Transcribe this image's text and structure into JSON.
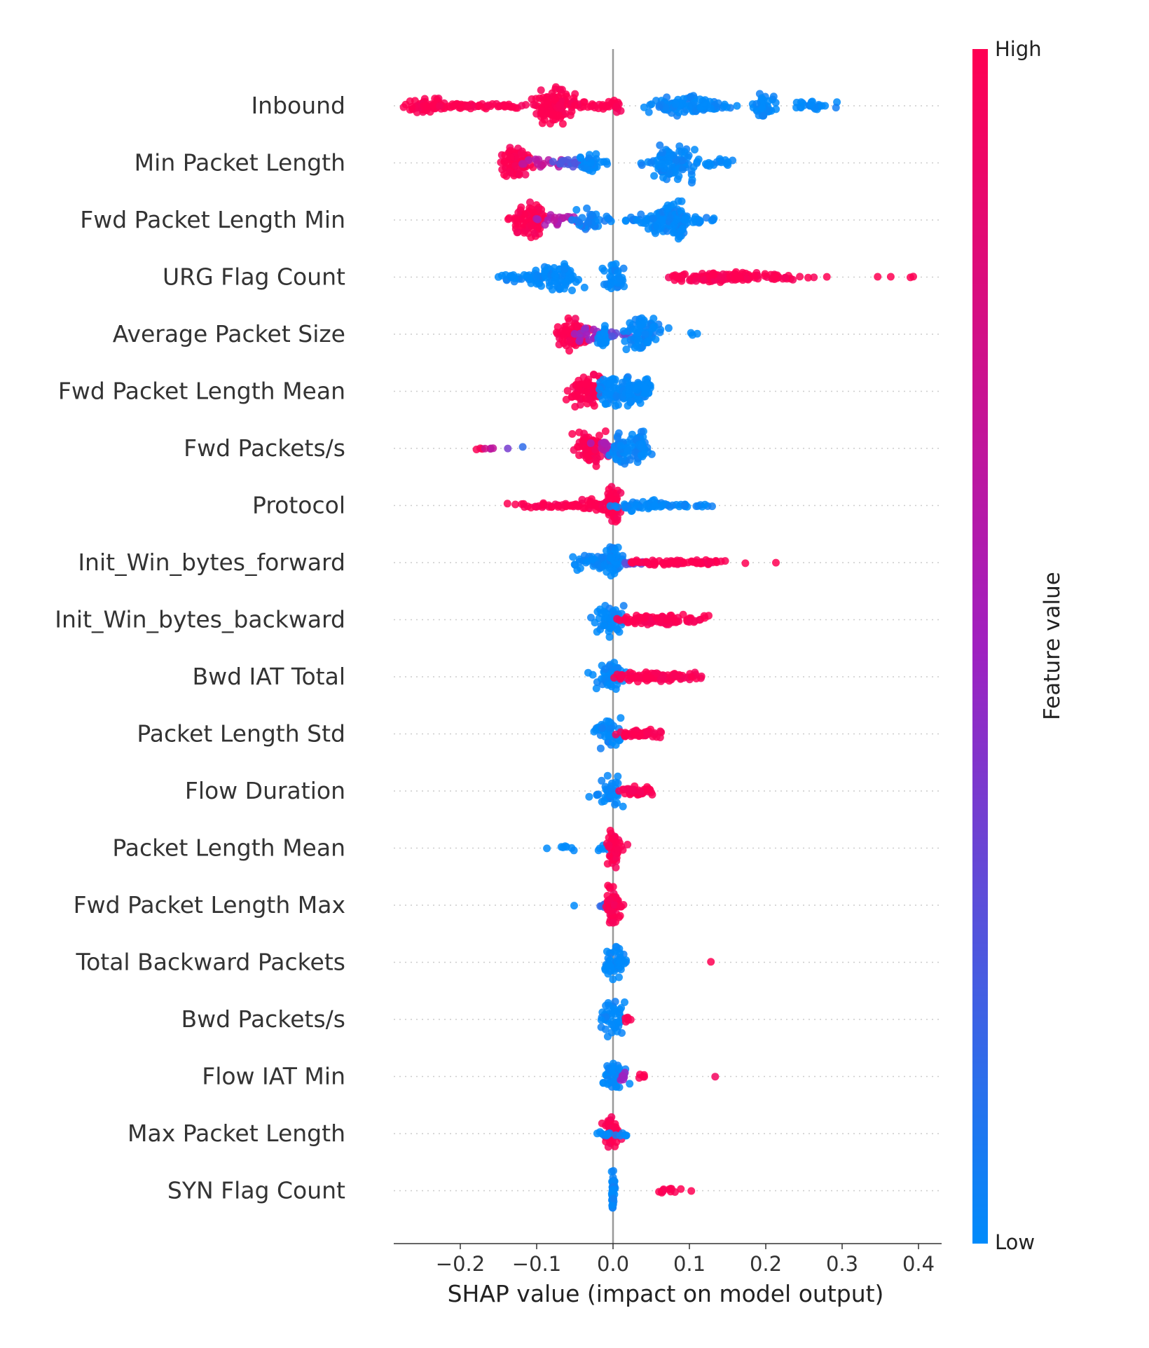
{
  "chart_data": {
    "type": "scatter",
    "subtype": "shap-beeswarm",
    "title": "",
    "xlabel": "SHAP value (impact on model output)",
    "ylabel": "",
    "xlim": [
      -0.29,
      0.43
    ],
    "x_ticks": [
      -0.2,
      -0.1,
      0.0,
      0.1,
      0.2,
      0.3,
      0.4
    ],
    "x_tick_labels": [
      "−0.2",
      "−0.1",
      "0.0",
      "0.1",
      "0.2",
      "0.3",
      "0.4"
    ],
    "colorbar": {
      "label": "Feature value",
      "high_label": "High",
      "low_label": "Low",
      "high_color": "#ff0052",
      "low_color": "#008bfb"
    },
    "features": [
      {
        "name": "Inbound",
        "clusters": [
          {
            "x": -0.245,
            "spread": 0.012,
            "v": 1,
            "w": 0.95,
            "n": 40
          },
          {
            "x": -0.21,
            "spread": 0.03,
            "v": 1,
            "w": 0.3,
            "n": 40
          },
          {
            "x": -0.15,
            "spread": 0.045,
            "v": 1,
            "w": 0.3,
            "n": 45
          },
          {
            "x": -0.075,
            "spread": 0.012,
            "v": 1,
            "w": 2.0,
            "n": 90
          },
          {
            "x": -0.03,
            "spread": 0.02,
            "v": 1,
            "w": 0.4,
            "n": 25
          },
          {
            "x": 0.0,
            "spread": 0.008,
            "v": 1,
            "w": 0.8,
            "n": 15
          },
          {
            "x": 0.095,
            "spread": 0.025,
            "v": 0,
            "w": 1.2,
            "n": 70
          },
          {
            "x": 0.06,
            "spread": 0.015,
            "v": 0,
            "w": 0.5,
            "n": 15
          },
          {
            "x": 0.13,
            "spread": 0.015,
            "v": 0,
            "w": 0.4,
            "n": 15
          },
          {
            "x": 0.195,
            "spread": 0.008,
            "v": 0,
            "w": 1.3,
            "n": 35
          },
          {
            "x": 0.26,
            "spread": 0.015,
            "v": 0,
            "w": 0.55,
            "n": 25
          }
        ]
      },
      {
        "name": "Min Packet Length",
        "clusters": [
          {
            "x": -0.128,
            "spread": 0.01,
            "v": 1,
            "w": 1.9,
            "n": 70
          },
          {
            "x": -0.095,
            "spread": 0.012,
            "v": 0.65,
            "w": 0.6,
            "n": 18
          },
          {
            "x": -0.06,
            "spread": 0.012,
            "v": 0.25,
            "w": 0.45,
            "n": 18
          },
          {
            "x": -0.03,
            "spread": 0.007,
            "v": 0,
            "w": 1.3,
            "n": 30
          },
          {
            "x": 0.01,
            "spread": 0.02,
            "v": 0,
            "w": 0.3,
            "n": 10
          },
          {
            "x": 0.08,
            "spread": 0.013,
            "v": 0,
            "w": 2.1,
            "n": 90
          },
          {
            "x": 0.13,
            "spread": 0.018,
            "v": 0,
            "w": 0.5,
            "n": 20
          }
        ]
      },
      {
        "name": "Fwd Packet Length Min",
        "clusters": [
          {
            "x": -0.112,
            "spread": 0.012,
            "v": 1,
            "w": 2.0,
            "n": 80
          },
          {
            "x": -0.075,
            "spread": 0.012,
            "v": 0.6,
            "w": 0.7,
            "n": 20
          },
          {
            "x": -0.03,
            "spread": 0.01,
            "v": 0.05,
            "w": 1.5,
            "n": 35
          },
          {
            "x": 0.03,
            "spread": 0.02,
            "v": 0,
            "w": 0.4,
            "n": 20
          },
          {
            "x": 0.065,
            "spread": 0.012,
            "v": 0,
            "w": 1.6,
            "n": 60
          },
          {
            "x": 0.085,
            "spread": 0.006,
            "v": 0,
            "w": 2.3,
            "n": 50
          },
          {
            "x": 0.12,
            "spread": 0.012,
            "v": 0,
            "w": 0.5,
            "n": 18
          }
        ]
      },
      {
        "name": "URG Flag Count",
        "clusters": [
          {
            "x": -0.12,
            "spread": 0.015,
            "v": 0,
            "w": 0.5,
            "n": 25
          },
          {
            "x": -0.095,
            "spread": 0.01,
            "v": 0,
            "w": 1.0,
            "n": 30
          },
          {
            "x": -0.07,
            "spread": 0.012,
            "v": 0,
            "w": 1.8,
            "n": 55
          },
          {
            "x": 0.0,
            "spread": 0.008,
            "v": 0,
            "w": 1.8,
            "n": 35
          },
          {
            "x": 0.1,
            "spread": 0.015,
            "v": 1,
            "w": 0.5,
            "n": 30
          },
          {
            "x": 0.14,
            "spread": 0.02,
            "v": 1,
            "w": 0.6,
            "n": 60
          },
          {
            "x": 0.2,
            "spread": 0.02,
            "v": 1,
            "w": 0.45,
            "n": 35
          },
          {
            "x": 0.25,
            "spread": 0.012,
            "v": 1,
            "w": 0.1,
            "n": 4
          },
          {
            "x": 0.28,
            "spread": 0.0,
            "v": 1,
            "w": 0.1,
            "n": 1
          },
          {
            "x": 0.35,
            "spread": 0.006,
            "v": 1,
            "w": 0.1,
            "n": 2
          },
          {
            "x": 0.39,
            "spread": 0.005,
            "v": 1,
            "w": 0.1,
            "n": 2
          }
        ]
      },
      {
        "name": "Average Packet Size",
        "clusters": [
          {
            "x": -0.055,
            "spread": 0.012,
            "v": 1,
            "w": 1.9,
            "n": 70
          },
          {
            "x": -0.025,
            "spread": 0.01,
            "v": 0.5,
            "w": 0.8,
            "n": 20
          },
          {
            "x": -0.013,
            "spread": 0.004,
            "v": 0,
            "w": 1.4,
            "n": 25
          },
          {
            "x": 0.01,
            "spread": 0.008,
            "v": 0.3,
            "w": 0.4,
            "n": 10
          },
          {
            "x": 0.04,
            "spread": 0.012,
            "v": 0,
            "w": 2.0,
            "n": 75
          },
          {
            "x": 0.102,
            "spread": 0.006,
            "v": 0,
            "w": 0.3,
            "n": 3
          }
        ]
      },
      {
        "name": "Fwd Packet Length Mean",
        "clusters": [
          {
            "x": -0.035,
            "spread": 0.01,
            "v": 1,
            "w": 1.9,
            "n": 70
          },
          {
            "x": -0.005,
            "spread": 0.007,
            "v": 0,
            "w": 1.7,
            "n": 45
          },
          {
            "x": 0.02,
            "spread": 0.008,
            "v": 0,
            "w": 1.7,
            "n": 45
          },
          {
            "x": 0.038,
            "spread": 0.006,
            "v": 0,
            "w": 1.5,
            "n": 35
          }
        ]
      },
      {
        "name": "Fwd Packets/s",
        "clusters": [
          {
            "x": -0.178,
            "spread": 0.005,
            "v": 1,
            "w": 0.2,
            "n": 3
          },
          {
            "x": -0.16,
            "spread": 0.005,
            "v": 0.7,
            "w": 0.2,
            "n": 4
          },
          {
            "x": -0.14,
            "spread": 0.002,
            "v": 0.4,
            "w": 0.2,
            "n": 1
          },
          {
            "x": -0.123,
            "spread": 0.002,
            "v": 0.2,
            "w": 0.2,
            "n": 1
          },
          {
            "x": -0.03,
            "spread": 0.01,
            "v": 1,
            "w": 2.0,
            "n": 70
          },
          {
            "x": -0.01,
            "spread": 0.01,
            "v": 0.6,
            "w": 0.9,
            "n": 20
          },
          {
            "x": 0.01,
            "spread": 0.007,
            "v": 0,
            "w": 1.7,
            "n": 40
          },
          {
            "x": 0.033,
            "spread": 0.007,
            "v": 0,
            "w": 2.0,
            "n": 45
          }
        ]
      },
      {
        "name": "Protocol",
        "clusters": [
          {
            "x": -0.07,
            "spread": 0.03,
            "v": 1,
            "w": 0.3,
            "n": 45
          },
          {
            "x": -0.02,
            "spread": 0.012,
            "v": 1,
            "w": 0.9,
            "n": 30
          },
          {
            "x": 0.0,
            "spread": 0.005,
            "v": 1,
            "w": 2.0,
            "n": 40
          },
          {
            "x": 0.03,
            "spread": 0.015,
            "v": 0,
            "w": 0.6,
            "n": 30
          },
          {
            "x": 0.07,
            "spread": 0.015,
            "v": 0,
            "w": 0.3,
            "n": 20
          },
          {
            "x": 0.1,
            "spread": 0.012,
            "v": 0,
            "w": 0.2,
            "n": 8
          },
          {
            "x": 0.126,
            "spread": 0.005,
            "v": 0,
            "w": 0.2,
            "n": 3
          }
        ]
      },
      {
        "name": "Init_Win_bytes_forward",
        "clusters": [
          {
            "x": -0.02,
            "spread": 0.015,
            "v": 0,
            "w": 0.9,
            "n": 50
          },
          {
            "x": 0.0,
            "spread": 0.005,
            "v": 0,
            "w": 2.0,
            "n": 40
          },
          {
            "x": 0.025,
            "spread": 0.008,
            "v": 0.3,
            "w": 0.4,
            "n": 10
          },
          {
            "x": 0.075,
            "spread": 0.03,
            "v": 1,
            "w": 0.3,
            "n": 60
          },
          {
            "x": 0.13,
            "spread": 0.012,
            "v": 1,
            "w": 0.3,
            "n": 15
          },
          {
            "x": 0.175,
            "spread": 0.001,
            "v": 1,
            "w": 0.1,
            "n": 1
          },
          {
            "x": 0.213,
            "spread": 0.001,
            "v": 1,
            "w": 0.1,
            "n": 1
          }
        ]
      },
      {
        "name": "Init_Win_bytes_backward",
        "clusters": [
          {
            "x": -0.005,
            "spread": 0.01,
            "v": 0,
            "w": 1.8,
            "n": 50
          },
          {
            "x": 0.065,
            "spread": 0.028,
            "v": 1,
            "w": 0.6,
            "n": 90
          }
        ]
      },
      {
        "name": "Bwd IAT Total",
        "clusters": [
          {
            "x": -0.005,
            "spread": 0.01,
            "v": 0,
            "w": 1.8,
            "n": 45
          },
          {
            "x": 0.06,
            "spread": 0.027,
            "v": 1,
            "w": 0.5,
            "n": 90
          }
        ]
      },
      {
        "name": "Packet Length Std",
        "clusters": [
          {
            "x": -0.005,
            "spread": 0.01,
            "v": 0,
            "w": 1.8,
            "n": 45
          },
          {
            "x": 0.035,
            "spread": 0.014,
            "v": 1,
            "w": 0.5,
            "n": 50
          }
        ]
      },
      {
        "name": "Flow Duration",
        "clusters": [
          {
            "x": -0.005,
            "spread": 0.01,
            "v": 0,
            "w": 1.7,
            "n": 40
          },
          {
            "x": 0.03,
            "spread": 0.012,
            "v": 1,
            "w": 0.5,
            "n": 40
          }
        ]
      },
      {
        "name": "Packet Length Mean",
        "clusters": [
          {
            "x": -0.085,
            "spread": 0.001,
            "v": 0,
            "w": 0.1,
            "n": 1
          },
          {
            "x": -0.062,
            "spread": 0.005,
            "v": 0,
            "w": 0.3,
            "n": 6
          },
          {
            "x": -0.012,
            "spread": 0.004,
            "v": 0,
            "w": 0.3,
            "n": 6
          },
          {
            "x": 0.0,
            "spread": 0.004,
            "v": 1,
            "w": 2.2,
            "n": 45
          },
          {
            "x": 0.01,
            "spread": 0.005,
            "v": 1,
            "w": 0.4,
            "n": 6
          }
        ]
      },
      {
        "name": "Fwd Packet Length Max",
        "clusters": [
          {
            "x": -0.05,
            "spread": 0.001,
            "v": 0,
            "w": 0.1,
            "n": 1
          },
          {
            "x": -0.01,
            "spread": 0.004,
            "v": 0.2,
            "w": 0.3,
            "n": 10
          },
          {
            "x": 0.0,
            "spread": 0.004,
            "v": 1,
            "w": 2.2,
            "n": 45
          },
          {
            "x": 0.01,
            "spread": 0.004,
            "v": 1,
            "w": 0.4,
            "n": 8
          }
        ]
      },
      {
        "name": "Total Backward Packets",
        "clusters": [
          {
            "x": 0.0,
            "spread": 0.008,
            "v": 0,
            "w": 2.0,
            "n": 45
          },
          {
            "x": 0.012,
            "spread": 0.004,
            "v": 0,
            "w": 0.4,
            "n": 6
          },
          {
            "x": 0.127,
            "spread": 0.001,
            "v": 1,
            "w": 0.1,
            "n": 1
          }
        ]
      },
      {
        "name": "Bwd Packets/s",
        "clusters": [
          {
            "x": 0.0,
            "spread": 0.008,
            "v": 0,
            "w": 2.0,
            "n": 45
          },
          {
            "x": 0.018,
            "spread": 0.004,
            "v": 1,
            "w": 0.4,
            "n": 6
          }
        ]
      },
      {
        "name": "Flow IAT Min",
        "clusters": [
          {
            "x": 0.0,
            "spread": 0.008,
            "v": 0,
            "w": 2.0,
            "n": 45
          },
          {
            "x": 0.012,
            "spread": 0.004,
            "v": 0.5,
            "w": 0.6,
            "n": 6
          },
          {
            "x": 0.037,
            "spread": 0.003,
            "v": 1,
            "w": 0.25,
            "n": 5
          },
          {
            "x": 0.133,
            "spread": 0.001,
            "v": 1,
            "w": 0.1,
            "n": 1
          }
        ]
      },
      {
        "name": "Max Packet Length",
        "clusters": [
          {
            "x": 0.0,
            "spread": 0.006,
            "v": 1,
            "w": 2.0,
            "n": 45
          },
          {
            "x": -0.01,
            "spread": 0.004,
            "v": 0,
            "w": 0.4,
            "n": 8
          },
          {
            "x": 0.012,
            "spread": 0.004,
            "v": 0,
            "w": 0.4,
            "n": 6
          }
        ]
      },
      {
        "name": "SYN Flag Count",
        "clusters": [
          {
            "x": 0.0,
            "spread": 0.001,
            "v": 0,
            "w": 2.2,
            "n": 45
          },
          {
            "x": 0.075,
            "spread": 0.007,
            "v": 1,
            "w": 0.4,
            "n": 12
          },
          {
            "x": 0.103,
            "spread": 0.001,
            "v": 1,
            "w": 0.1,
            "n": 1
          }
        ]
      }
    ]
  }
}
